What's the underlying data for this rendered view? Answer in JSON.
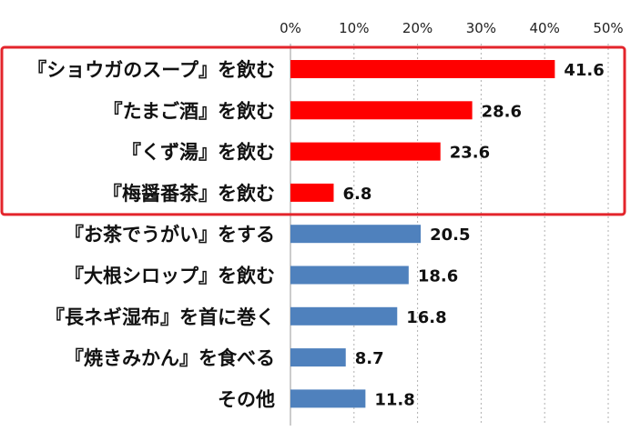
{
  "chart_data": {
    "type": "bar",
    "orientation": "horizontal",
    "title": "",
    "xlabel": "",
    "ylabel": "",
    "xlim": [
      0,
      50
    ],
    "ticks": [
      "0%",
      "10%",
      "20%",
      "30%",
      "40%",
      "50%"
    ],
    "tick_values": [
      0,
      10,
      20,
      30,
      40,
      50
    ],
    "grid": "vertical",
    "categories": [
      "『ショウガのスープ』を飲む",
      "『たまご酒』を飲む",
      "『くず湯』を飲む",
      "『梅醤番茶』を飲む",
      "『お茶でうがい』をする",
      "『大根シロップ』を飲む",
      "『長ネギ湿布』を首に巻く",
      "『焼きみかん』を食べる",
      "その他"
    ],
    "values": [
      41.6,
      28.6,
      23.6,
      6.8,
      20.5,
      18.6,
      16.8,
      8.7,
      11.8
    ],
    "value_labels": [
      "41.6",
      "28.6",
      "23.6",
      "6.8",
      "20.5",
      "18.6",
      "16.8",
      "8.7",
      "11.8"
    ],
    "bar_colors": [
      "#ff0000",
      "#ff0000",
      "#ff0000",
      "#ff0000",
      "#4f81bd",
      "#4f81bd",
      "#4f81bd",
      "#4f81bd",
      "#4f81bd"
    ],
    "highlight_box": {
      "from_index": 0,
      "to_index": 3,
      "color": "#e3242b"
    }
  }
}
